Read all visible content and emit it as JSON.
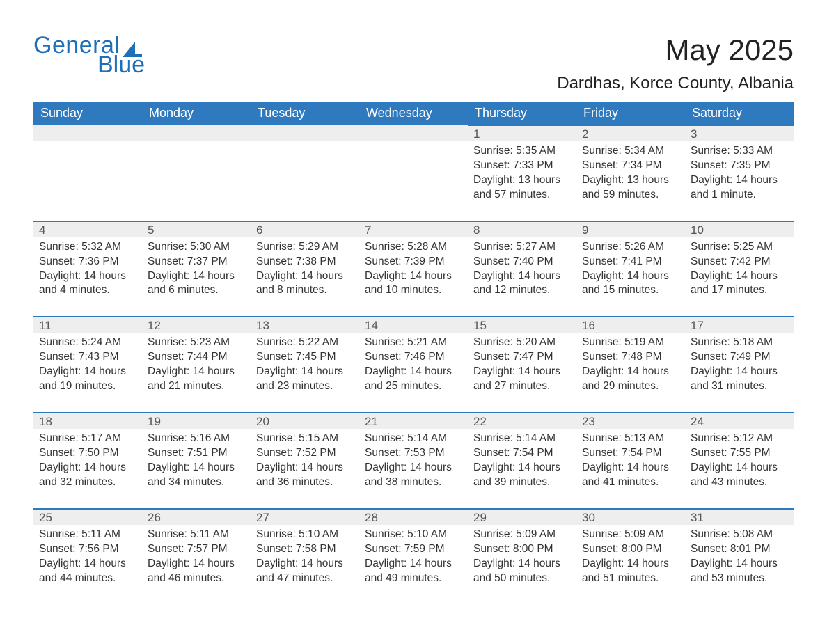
{
  "brand": {
    "word1": "General",
    "word2": "Blue",
    "color": "#1d6fb8"
  },
  "title": "May 2025",
  "location": "Dardhas, Korce County, Albania",
  "colors": {
    "header_bg": "#2f79bf",
    "header_text": "#ffffff",
    "daynum_bg": "#eeeeee",
    "row_border": "#2f79bf",
    "body_text": "#333333",
    "page_bg": "#ffffff"
  },
  "typography": {
    "title_fontsize": 42,
    "location_fontsize": 24,
    "dayhead_fontsize": 18,
    "cell_fontsize": 15.5,
    "logo_fontsize": 34
  },
  "day_headers": [
    "Sunday",
    "Monday",
    "Tuesday",
    "Wednesday",
    "Thursday",
    "Friday",
    "Saturday"
  ],
  "weeks": [
    [
      null,
      null,
      null,
      null,
      {
        "n": "1",
        "sunrise": "5:35 AM",
        "sunset": "7:33 PM",
        "daylight": "13 hours and 57 minutes."
      },
      {
        "n": "2",
        "sunrise": "5:34 AM",
        "sunset": "7:34 PM",
        "daylight": "13 hours and 59 minutes."
      },
      {
        "n": "3",
        "sunrise": "5:33 AM",
        "sunset": "7:35 PM",
        "daylight": "14 hours and 1 minute."
      }
    ],
    [
      {
        "n": "4",
        "sunrise": "5:32 AM",
        "sunset": "7:36 PM",
        "daylight": "14 hours and 4 minutes."
      },
      {
        "n": "5",
        "sunrise": "5:30 AM",
        "sunset": "7:37 PM",
        "daylight": "14 hours and 6 minutes."
      },
      {
        "n": "6",
        "sunrise": "5:29 AM",
        "sunset": "7:38 PM",
        "daylight": "14 hours and 8 minutes."
      },
      {
        "n": "7",
        "sunrise": "5:28 AM",
        "sunset": "7:39 PM",
        "daylight": "14 hours and 10 minutes."
      },
      {
        "n": "8",
        "sunrise": "5:27 AM",
        "sunset": "7:40 PM",
        "daylight": "14 hours and 12 minutes."
      },
      {
        "n": "9",
        "sunrise": "5:26 AM",
        "sunset": "7:41 PM",
        "daylight": "14 hours and 15 minutes."
      },
      {
        "n": "10",
        "sunrise": "5:25 AM",
        "sunset": "7:42 PM",
        "daylight": "14 hours and 17 minutes."
      }
    ],
    [
      {
        "n": "11",
        "sunrise": "5:24 AM",
        "sunset": "7:43 PM",
        "daylight": "14 hours and 19 minutes."
      },
      {
        "n": "12",
        "sunrise": "5:23 AM",
        "sunset": "7:44 PM",
        "daylight": "14 hours and 21 minutes."
      },
      {
        "n": "13",
        "sunrise": "5:22 AM",
        "sunset": "7:45 PM",
        "daylight": "14 hours and 23 minutes."
      },
      {
        "n": "14",
        "sunrise": "5:21 AM",
        "sunset": "7:46 PM",
        "daylight": "14 hours and 25 minutes."
      },
      {
        "n": "15",
        "sunrise": "5:20 AM",
        "sunset": "7:47 PM",
        "daylight": "14 hours and 27 minutes."
      },
      {
        "n": "16",
        "sunrise": "5:19 AM",
        "sunset": "7:48 PM",
        "daylight": "14 hours and 29 minutes."
      },
      {
        "n": "17",
        "sunrise": "5:18 AM",
        "sunset": "7:49 PM",
        "daylight": "14 hours and 31 minutes."
      }
    ],
    [
      {
        "n": "18",
        "sunrise": "5:17 AM",
        "sunset": "7:50 PM",
        "daylight": "14 hours and 32 minutes."
      },
      {
        "n": "19",
        "sunrise": "5:16 AM",
        "sunset": "7:51 PM",
        "daylight": "14 hours and 34 minutes."
      },
      {
        "n": "20",
        "sunrise": "5:15 AM",
        "sunset": "7:52 PM",
        "daylight": "14 hours and 36 minutes."
      },
      {
        "n": "21",
        "sunrise": "5:14 AM",
        "sunset": "7:53 PM",
        "daylight": "14 hours and 38 minutes."
      },
      {
        "n": "22",
        "sunrise": "5:14 AM",
        "sunset": "7:54 PM",
        "daylight": "14 hours and 39 minutes."
      },
      {
        "n": "23",
        "sunrise": "5:13 AM",
        "sunset": "7:54 PM",
        "daylight": "14 hours and 41 minutes."
      },
      {
        "n": "24",
        "sunrise": "5:12 AM",
        "sunset": "7:55 PM",
        "daylight": "14 hours and 43 minutes."
      }
    ],
    [
      {
        "n": "25",
        "sunrise": "5:11 AM",
        "sunset": "7:56 PM",
        "daylight": "14 hours and 44 minutes."
      },
      {
        "n": "26",
        "sunrise": "5:11 AM",
        "sunset": "7:57 PM",
        "daylight": "14 hours and 46 minutes."
      },
      {
        "n": "27",
        "sunrise": "5:10 AM",
        "sunset": "7:58 PM",
        "daylight": "14 hours and 47 minutes."
      },
      {
        "n": "28",
        "sunrise": "5:10 AM",
        "sunset": "7:59 PM",
        "daylight": "14 hours and 49 minutes."
      },
      {
        "n": "29",
        "sunrise": "5:09 AM",
        "sunset": "8:00 PM",
        "daylight": "14 hours and 50 minutes."
      },
      {
        "n": "30",
        "sunrise": "5:09 AM",
        "sunset": "8:00 PM",
        "daylight": "14 hours and 51 minutes."
      },
      {
        "n": "31",
        "sunrise": "5:08 AM",
        "sunset": "8:01 PM",
        "daylight": "14 hours and 53 minutes."
      }
    ]
  ],
  "labels": {
    "sunrise": "Sunrise: ",
    "sunset": "Sunset: ",
    "daylight": "Daylight: "
  }
}
